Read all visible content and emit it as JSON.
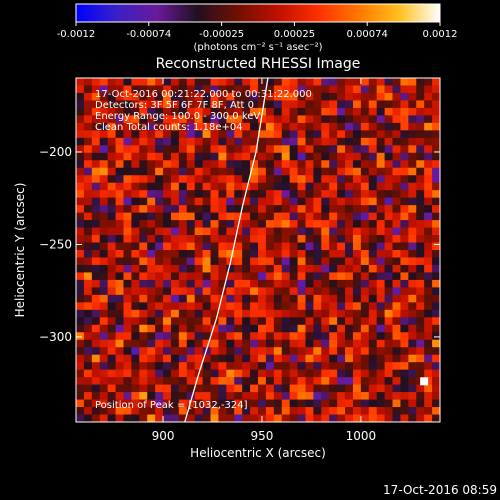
{
  "chart_data": {
    "type": "heatmap",
    "title": "Reconstructed RHESSI Image",
    "xlabel": "Heliocentric X (arcsec)",
    "ylabel": "Heliocentric Y (arcsec)",
    "xlim": [
      856,
      1040
    ],
    "ylim": [
      -346,
      -160
    ],
    "x_ticks": [
      900,
      950,
      1000
    ],
    "y_ticks": [
      -200,
      -250,
      -300
    ],
    "colorbar": {
      "min": -0.0012,
      "max": 0.0012,
      "ticks": [
        "-0.0012",
        "-0.00074",
        "-0.00025",
        "0.00025",
        "0.00074",
        "0.0012"
      ],
      "label": "(photons cm⁻² s⁻¹ asec⁻²)",
      "colormap": [
        "#0000ff",
        "#3a20c8",
        "#6a1a9a",
        "#201020",
        "#701000",
        "#c01000",
        "#ff3000",
        "#ff7800",
        "#ffc020",
        "#ffffff"
      ]
    },
    "annotations": [
      "17-Oct-2016 00:21:22.000 to 00:31:22.000",
      "Detectors: 3F 5F 6F 7F 8F, Att 0",
      "Energy Range: 100.0 - 300.0 keV",
      "Clean     Total counts: 1.18e+04"
    ],
    "peak_label": "Position of Peak = [1032,-324]",
    "peak_position": [
      1032,
      -324
    ],
    "limb_curve": [
      [
        911,
        -346
      ],
      [
        918,
        -320
      ],
      [
        927,
        -290
      ],
      [
        934,
        -260
      ],
      [
        940,
        -230
      ],
      [
        947,
        -200
      ],
      [
        953,
        -160
      ]
    ],
    "grid_cols": 46,
    "grid_rows": 46
  },
  "footer": {
    "timestamp": "17-Oct-2016 08:59"
  }
}
